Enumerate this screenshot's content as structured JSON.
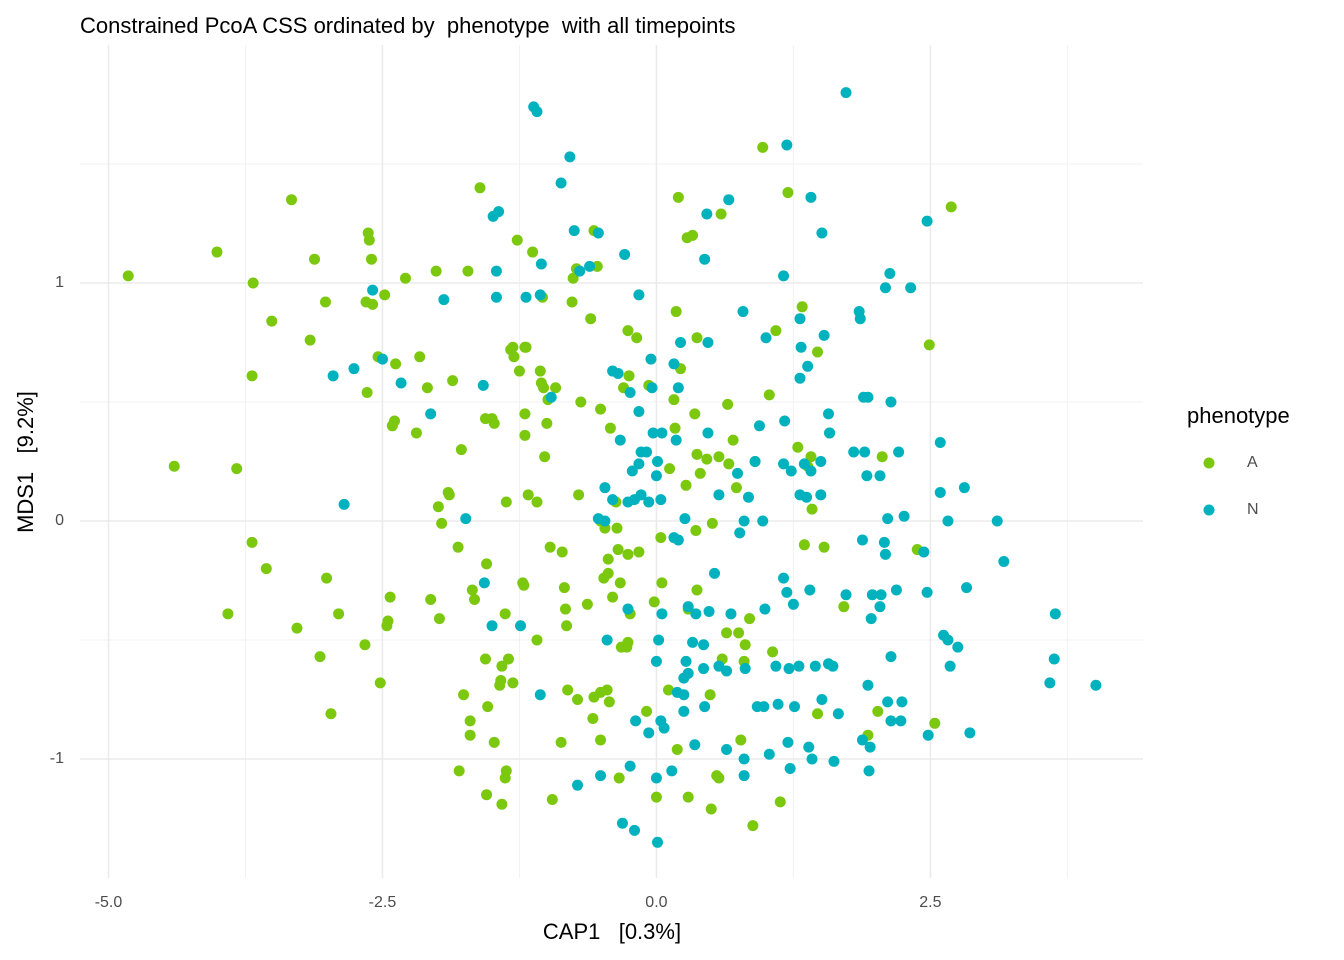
{
  "chart_data": {
    "type": "scatter",
    "title": "Constrained PcoA CSS ordinated by  phenotype  with all timepoints",
    "x_label": "CAP1   [0.3%]",
    "y_label": "MDS1   [9.2%]",
    "legend_title": "phenotype",
    "legend_position": "right",
    "grid": true,
    "xlim": [
      -5.26,
      4.44
    ],
    "ylim": [
      -1.5,
      2.0
    ],
    "xticks": [
      {
        "value": -5,
        "label": "-5.0"
      },
      {
        "value": -2.5,
        "label": "-2.5"
      },
      {
        "value": 0,
        "label": "0.0"
      },
      {
        "value": 2.5,
        "label": "2.5"
      }
    ],
    "yticks": [
      -1,
      0,
      1
    ],
    "series": [
      {
        "name": "A",
        "color": "#7cc80e",
        "x": [
          -4.82,
          -4.01,
          -3.33,
          -4.4,
          -3.83,
          -3.68,
          -3.51,
          -3.91,
          -3.69,
          -3.56,
          -3.69,
          -3.16,
          -3.12,
          -3.02,
          -3.28,
          -3.07,
          -3.01,
          -2.97,
          -2.9,
          -2.66,
          -2.64,
          -2.65,
          -2.63,
          -2.62,
          -2.59,
          -2.6,
          -2.54,
          -2.52,
          -2.48,
          -2.46,
          -2.45,
          -2.43,
          -2.41,
          -2.39,
          -2.38,
          -2.29,
          -2.19,
          -2.16,
          -2.09,
          -2.06,
          -2.01,
          -1.98,
          -1.99,
          -1.96,
          -1.9,
          -1.89,
          -1.86,
          -1.81,
          -1.78,
          -1.8,
          -1.76,
          -1.72,
          -1.7,
          -1.7,
          -1.66,
          -1.68,
          -1.61,
          -1.56,
          -1.56,
          -1.55,
          -1.55,
          -1.54,
          -1.5,
          -1.48,
          -1.48,
          -1.42,
          -1.43,
          -1.41,
          -1.41,
          -1.38,
          -1.38,
          -1.37,
          -1.37,
          -1.35,
          -1.33,
          -1.31,
          -1.31,
          -1.3,
          -1.27,
          -1.25,
          -1.22,
          -1.21,
          -1.2,
          -1.2,
          -1.2,
          -1.19,
          -1.17,
          -1.13,
          -1.09,
          -1.09,
          -1.06,
          -1.05,
          -1.04,
          -1.03,
          -1.02,
          -1.0,
          -0.99,
          -0.97,
          -0.95,
          -0.92,
          -0.87,
          -0.86,
          -0.84,
          -0.83,
          -0.82,
          -0.81,
          -0.77,
          -0.76,
          -0.73,
          -0.71,
          -0.72,
          -0.69,
          -0.63,
          -0.6,
          -0.58,
          -0.57,
          -0.57,
          -0.54,
          -0.51,
          -0.51,
          -0.51,
          -0.51,
          -0.48,
          -0.47,
          -0.44,
          -0.44,
          -0.45,
          -0.43,
          -0.42,
          -0.4,
          -0.37,
          -0.36,
          -0.35,
          -0.34,
          -0.33,
          -0.32,
          -0.3,
          -0.27,
          -0.26,
          -0.26,
          -0.26,
          -0.25,
          -0.24,
          -0.18,
          -0.16,
          -0.09,
          -0.07,
          -0.02,
          0.0,
          0.04,
          0.05,
          0.11,
          0.12,
          0.16,
          0.17,
          0.18,
          0.19,
          0.2,
          0.22,
          0.27,
          0.28,
          0.29,
          0.29,
          0.33,
          0.35,
          0.36,
          0.37,
          0.37,
          0.37,
          0.4,
          0.46,
          0.49,
          0.5,
          0.51,
          0.55,
          0.57,
          0.57,
          0.59,
          0.6,
          0.64,
          0.65,
          0.66,
          0.7,
          0.73,
          0.75,
          0.77,
          0.8,
          0.81,
          0.85,
          0.88,
          0.9,
          0.97,
          1.03,
          1.06,
          1.09,
          1.13,
          1.2,
          1.29,
          1.33,
          1.35,
          1.38,
          1.41,
          1.42,
          1.47,
          1.47,
          1.53,
          1.58,
          1.71,
          1.93,
          2.02,
          2.06,
          2.38,
          2.49,
          2.54,
          2.69
        ],
        "y": [
          1.03,
          1.13,
          1.35,
          0.23,
          0.22,
          1.0,
          0.84,
          -0.39,
          -0.09,
          -0.2,
          0.61,
          0.76,
          1.1,
          0.92,
          -0.45,
          -0.57,
          -0.24,
          -0.81,
          -0.39,
          -0.52,
          0.54,
          0.92,
          1.21,
          1.18,
          0.91,
          1.1,
          0.69,
          -0.68,
          0.95,
          -0.44,
          -0.42,
          -0.32,
          0.4,
          0.42,
          0.66,
          1.02,
          0.37,
          0.69,
          0.56,
          -0.33,
          1.05,
          -0.41,
          0.06,
          -0.01,
          0.12,
          0.11,
          0.59,
          -0.11,
          0.3,
          -1.05,
          -0.73,
          1.05,
          -0.9,
          -0.84,
          -0.33,
          -0.29,
          1.4,
          0.43,
          -0.58,
          -1.15,
          -0.18,
          -0.78,
          0.43,
          -0.93,
          0.41,
          -0.67,
          -0.69,
          -0.61,
          -1.19,
          -1.08,
          -0.39,
          0.08,
          -1.05,
          -0.58,
          0.72,
          -0.68,
          0.73,
          0.69,
          1.18,
          0.63,
          -0.26,
          -0.27,
          0.73,
          0.36,
          0.45,
          0.73,
          0.11,
          1.13,
          -0.5,
          0.08,
          0.63,
          0.58,
          0.94,
          0.56,
          0.27,
          0.41,
          0.51,
          -0.11,
          -1.17,
          0.56,
          -0.93,
          -0.13,
          -0.28,
          -0.37,
          -0.44,
          -0.71,
          0.92,
          1.02,
          1.06,
          0.11,
          -0.75,
          0.5,
          -0.35,
          0.85,
          -0.83,
          1.22,
          -0.74,
          1.07,
          -0.72,
          -0.92,
          0.47,
          0.0,
          -0.24,
          -0.03,
          -0.22,
          -0.16,
          -0.71,
          -0.76,
          0.39,
          -0.32,
          0.08,
          -0.03,
          -0.12,
          -1.08,
          -0.26,
          -0.53,
          0.56,
          -0.53,
          0.8,
          -0.14,
          -0.51,
          0.61,
          -0.39,
          0.77,
          -0.13,
          -0.8,
          0.57,
          -0.34,
          -1.16,
          -0.07,
          -0.26,
          -0.71,
          0.22,
          0.51,
          0.39,
          0.88,
          -0.96,
          1.36,
          0.64,
          0.15,
          1.19,
          -0.37,
          -1.16,
          1.2,
          0.45,
          -0.04,
          -0.29,
          0.28,
          0.77,
          0.2,
          0.26,
          -0.73,
          -1.21,
          -0.01,
          -1.07,
          -1.08,
          0.27,
          1.29,
          -0.58,
          -0.47,
          0.49,
          0.24,
          0.34,
          0.14,
          -0.47,
          -0.92,
          -0.59,
          -0.52,
          -0.41,
          -1.28,
          0.25,
          1.57,
          0.53,
          -0.55,
          0.8,
          -1.18,
          1.38,
          0.31,
          0.9,
          -0.1,
          0.23,
          0.27,
          0.05,
          0.71,
          -0.81,
          -0.11,
          0.37,
          -0.36,
          -0.9,
          -0.8,
          0.27,
          -0.12,
          0.74,
          -0.85,
          1.32
        ]
      },
      {
        "name": "N",
        "color": "#00b2be",
        "x": [
          1.73,
          -1.12,
          -1.09,
          -0.79,
          -0.87,
          1.19,
          0.66,
          1.41,
          0.46,
          1.51,
          2.47,
          -1.49,
          -1.44,
          -0.75,
          -0.53,
          -0.29,
          -1.05,
          -0.61,
          -0.7,
          -1.46,
          0.44,
          1.16,
          2.09,
          2.32,
          2.13,
          -2.59,
          -1.94,
          -1.46,
          -1.19,
          -1.06,
          -0.16,
          1.85,
          1.86,
          0.79,
          1.31,
          0.22,
          0.47,
          1.53,
          1.0,
          1.32,
          1.38,
          1.31,
          -2.95,
          -2.76,
          -2.5,
          -2.33,
          -1.58,
          -0.96,
          -2.06,
          -0.4,
          -0.35,
          -0.05,
          0.16,
          -0.04,
          0.2,
          -0.16,
          -0.24,
          1.89,
          1.93,
          2.14,
          1.57,
          1.17,
          0.94,
          -0.03,
          0.05,
          -0.09,
          -0.14,
          -0.33,
          0.18,
          0.47,
          1.58,
          1.8,
          1.9,
          2.04,
          1.92,
          2.21,
          2.59,
          1.35,
          1.5,
          1.41,
          1.23,
          1.16,
          0.74,
          0.9,
          0.01,
          0.0,
          -0.16,
          -0.22,
          -0.47,
          -0.4,
          -0.26,
          -0.14,
          -0.2,
          -0.07,
          0.04,
          -0.47,
          -0.53,
          0.84,
          0.57,
          1.37,
          1.5,
          1.31,
          2.59,
          2.81,
          0.8,
          0.97,
          0.76,
          0.16,
          0.2,
          0.26,
          2.11,
          2.26,
          2.66,
          3.11,
          1.88,
          2.08,
          2.09,
          2.44,
          3.17,
          -1.74,
          -2.85,
          -1.57,
          1.16,
          0.53,
          1.19,
          1.25,
          1.4,
          1.73,
          1.97,
          2.05,
          2.19,
          2.47,
          2.83,
          -0.26,
          0.05,
          0.29,
          0.36,
          0.48,
          0.68,
          0.99,
          1.96,
          2.04,
          2.62,
          2.66,
          2.75,
          3.64,
          3.63,
          3.59,
          4.01,
          -1.5,
          -1.24,
          -0.45,
          0.02,
          0.0,
          0.33,
          0.43,
          0.27,
          0.29,
          0.25,
          0.43,
          0.57,
          0.64,
          0.81,
          1.09,
          1.21,
          1.3,
          1.45,
          1.57,
          1.61,
          2.14,
          2.68,
          1.93,
          -1.06,
          0.19,
          0.25,
          0.44,
          0.92,
          0.98,
          1.11,
          1.26,
          1.51,
          1.66,
          2.11,
          2.24,
          2.23,
          2.14,
          0.25,
          -0.19,
          0.04,
          0.07,
          -0.07,
          0.35,
          0.64,
          1.2,
          1.39,
          1.88,
          1.95,
          2.48,
          2.86,
          0.8,
          1.03,
          0.8,
          1.22,
          1.42,
          1.62,
          1.94,
          -0.24,
          0.0,
          0.14,
          -0.51,
          -0.72,
          -0.31,
          -0.2,
          0.01
        ],
        "y": [
          1.8,
          1.74,
          1.72,
          1.53,
          1.42,
          1.58,
          1.35,
          1.36,
          1.29,
          1.21,
          1.26,
          1.28,
          1.3,
          1.22,
          1.21,
          1.12,
          1.08,
          1.07,
          1.05,
          1.05,
          1.1,
          1.03,
          0.98,
          0.98,
          1.04,
          0.97,
          0.93,
          0.94,
          0.94,
          0.95,
          0.95,
          0.88,
          0.85,
          0.88,
          0.85,
          0.75,
          0.75,
          0.78,
          0.77,
          0.73,
          0.65,
          0.6,
          0.61,
          0.64,
          0.68,
          0.58,
          0.57,
          0.52,
          0.45,
          0.63,
          0.62,
          0.68,
          0.66,
          0.56,
          0.56,
          0.46,
          0.54,
          0.52,
          0.52,
          0.5,
          0.45,
          0.42,
          0.4,
          0.37,
          0.37,
          0.29,
          0.29,
          0.34,
          0.34,
          0.37,
          0.37,
          0.29,
          0.29,
          0.19,
          0.19,
          0.29,
          0.33,
          0.24,
          0.25,
          0.21,
          0.21,
          0.24,
          0.2,
          0.25,
          0.25,
          0.19,
          0.24,
          0.21,
          0.14,
          0.09,
          0.08,
          0.11,
          0.09,
          0.08,
          0.09,
          0.0,
          0.01,
          0.1,
          0.11,
          0.1,
          0.11,
          0.11,
          0.12,
          0.14,
          0.0,
          0.0,
          -0.05,
          -0.07,
          -0.08,
          0.01,
          0.01,
          0.02,
          0.0,
          0.0,
          -0.08,
          -0.09,
          -0.14,
          -0.13,
          -0.17,
          0.01,
          0.07,
          -0.26,
          -0.24,
          -0.22,
          -0.3,
          -0.35,
          -0.29,
          -0.31,
          -0.31,
          -0.31,
          -0.29,
          -0.3,
          -0.28,
          -0.37,
          -0.39,
          -0.36,
          -0.39,
          -0.38,
          -0.39,
          -0.37,
          -0.41,
          -0.36,
          -0.48,
          -0.5,
          -0.53,
          -0.39,
          -0.58,
          -0.68,
          -0.69,
          -0.44,
          -0.44,
          -0.5,
          -0.5,
          -0.59,
          -0.51,
          -0.52,
          -0.59,
          -0.64,
          -0.66,
          -0.62,
          -0.61,
          -0.63,
          -0.62,
          -0.61,
          -0.62,
          -0.61,
          -0.61,
          -0.6,
          -0.61,
          -0.57,
          -0.61,
          -0.69,
          -0.73,
          -0.72,
          -0.73,
          -0.78,
          -0.78,
          -0.78,
          -0.77,
          -0.78,
          -0.75,
          -0.81,
          -0.76,
          -0.76,
          -0.84,
          -0.84,
          -0.8,
          -0.84,
          -0.84,
          -0.87,
          -0.89,
          -0.94,
          -0.96,
          -0.93,
          -0.95,
          -0.92,
          -0.95,
          -0.9,
          -0.89,
          -1.0,
          -0.98,
          -1.07,
          -1.04,
          -1.0,
          -1.01,
          -1.05,
          -1.03,
          -1.08,
          -1.05,
          -1.07,
          -1.11,
          -1.27,
          -1.3,
          -1.35
        ]
      }
    ]
  }
}
